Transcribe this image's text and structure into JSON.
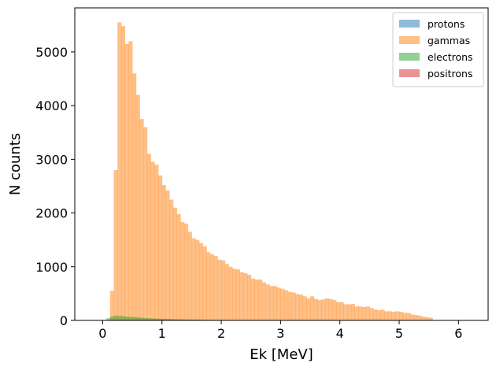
{
  "chart_data": {
    "type": "bar",
    "title": "",
    "xlabel": "Ek [MeV]",
    "ylabel": "N counts",
    "xlim": [
      -0.47,
      6.5
    ],
    "ylim": [
      0,
      5820
    ],
    "xticks": [
      0,
      1,
      2,
      3,
      4,
      5,
      6
    ],
    "yticks": [
      0,
      1000,
      2000,
      3000,
      4000,
      5000
    ],
    "bin_start": 0.0,
    "bin_width": 0.0625,
    "legend": {
      "placement": "top-right"
    },
    "series": [
      {
        "name": "protons",
        "color": "#1f77b4",
        "alpha": 0.5,
        "values": []
      },
      {
        "name": "gammas",
        "color": "#ff7f0e",
        "alpha": 0.5,
        "values": [
          0,
          0,
          550,
          2800,
          5550,
          5480,
          5150,
          5200,
          4600,
          4200,
          3750,
          3600,
          3100,
          2950,
          2900,
          2700,
          2520,
          2420,
          2250,
          2100,
          1980,
          1830,
          1800,
          1650,
          1530,
          1500,
          1440,
          1380,
          1270,
          1230,
          1200,
          1130,
          1120,
          1050,
          1000,
          960,
          950,
          900,
          880,
          850,
          780,
          760,
          760,
          710,
          670,
          640,
          640,
          610,
          590,
          560,
          530,
          520,
          490,
          480,
          450,
          410,
          450,
          400,
          380,
          390,
          410,
          400,
          380,
          340,
          340,
          300,
          300,
          310,
          260,
          260,
          250,
          260,
          230,
          200,
          190,
          200,
          170,
          170,
          160,
          170,
          160,
          140,
          140,
          110,
          100,
          90,
          70,
          60,
          50,
          0
        ]
      },
      {
        "name": "electrons",
        "color": "#2ca02c",
        "alpha": 0.5,
        "values": [
          0,
          40,
          70,
          90,
          85,
          80,
          70,
          65,
          60,
          55,
          50,
          45,
          40,
          38,
          35,
          32,
          30,
          28,
          25,
          22,
          20,
          18,
          16,
          15,
          14,
          13,
          12,
          11,
          10,
          9,
          8,
          8,
          7,
          6,
          5,
          5,
          4,
          3,
          2,
          2,
          1,
          1,
          0
        ]
      },
      {
        "name": "positrons",
        "color": "#d62728",
        "alpha": 0.5,
        "values": []
      }
    ]
  }
}
